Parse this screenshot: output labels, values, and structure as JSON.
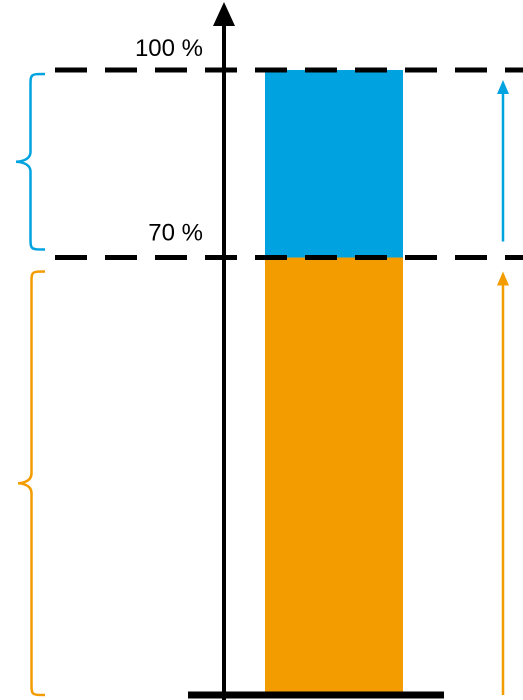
{
  "chart_data": {
    "type": "bar",
    "title": "",
    "xlabel": "",
    "ylabel": "",
    "ylim": [
      0,
      100
    ],
    "ticks": [
      {
        "value": 100,
        "label": "100 %"
      },
      {
        "value": 70,
        "label": "70 %"
      }
    ],
    "segments": [
      {
        "from": 0,
        "to": 70,
        "color": "#F39C00"
      },
      {
        "from": 70,
        "to": 100,
        "color": "#00A3E0"
      }
    ]
  },
  "colors": {
    "axis": "#000000",
    "dashed_lines": "#000000",
    "orange": "#F39C00",
    "blue": "#00A3E0"
  },
  "icons": {
    "orange_brace": "curly-brace-icon",
    "blue_brace": "curly-brace-icon",
    "orange_arrow": "up-arrow-icon",
    "blue_arrow": "up-arrow-icon"
  }
}
